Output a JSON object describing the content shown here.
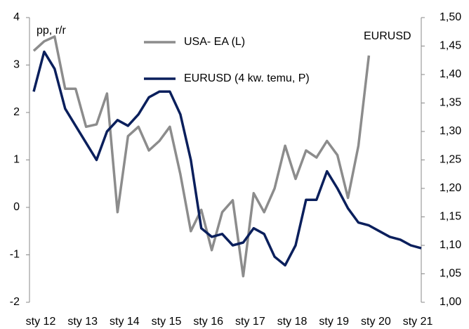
{
  "chart_data": {
    "type": "line",
    "y_label": "pp, r/r",
    "annotation": "EURUSD",
    "categories": [
      "sty 12",
      null,
      null,
      null,
      "sty 13",
      null,
      null,
      null,
      "sty 14",
      null,
      null,
      null,
      "sty 15",
      null,
      null,
      null,
      "sty 16",
      null,
      null,
      null,
      "sty 17",
      null,
      null,
      null,
      "sty 18",
      null,
      null,
      null,
      "sty 19",
      null,
      null,
      null,
      "sty 20",
      null,
      null,
      null,
      "sty 21",
      null
    ],
    "series": [
      {
        "name": "USA- EA (L)",
        "color": "#8c8c8c",
        "axis": "y",
        "values": [
          3.3,
          3.5,
          3.6,
          2.5,
          2.5,
          1.7,
          1.75,
          2.4,
          -0.1,
          1.5,
          1.7,
          1.2,
          1.4,
          1.7,
          0.7,
          -0.5,
          -0.05,
          -0.9,
          -0.1,
          0.15,
          -1.45,
          0.3,
          -0.1,
          0.4,
          1.3,
          0.6,
          1.2,
          1.05,
          1.4,
          1.1,
          0.2,
          1.3,
          3.2,
          null,
          null,
          null,
          null,
          null
        ]
      },
      {
        "name": "EURUSD (4 kw. temu, P)",
        "color": "#0a1f5c",
        "axis": "y2",
        "values": [
          1.37,
          1.44,
          1.41,
          1.34,
          1.31,
          1.28,
          1.25,
          1.3,
          1.32,
          1.31,
          1.33,
          1.36,
          1.37,
          1.37,
          1.33,
          1.25,
          1.13,
          1.115,
          1.12,
          1.1,
          1.105,
          1.13,
          1.12,
          1.08,
          1.065,
          1.1,
          1.18,
          1.18,
          1.23,
          1.2,
          1.165,
          1.14,
          1.135,
          1.125,
          1.115,
          1.11,
          1.1,
          1.095
        ]
      }
    ],
    "ylim": [
      -2,
      4
    ],
    "yticks": [
      -2,
      -1,
      0,
      1,
      2,
      3,
      4
    ],
    "y2lim": [
      1.0,
      1.5
    ],
    "y2ticks": [
      {
        "value": 1.0,
        "label": "1,00"
      },
      {
        "value": 1.05,
        "label": "1,05"
      },
      {
        "value": 1.1,
        "label": "1,10"
      },
      {
        "value": 1.15,
        "label": "1,15"
      },
      {
        "value": 1.2,
        "label": "1,20"
      },
      {
        "value": 1.25,
        "label": "1,25"
      },
      {
        "value": 1.3,
        "label": "1,30"
      },
      {
        "value": 1.35,
        "label": "1,35"
      },
      {
        "value": 1.4,
        "label": "1,40"
      },
      {
        "value": 1.45,
        "label": "1,45"
      },
      {
        "value": 1.5,
        "label": "1,50"
      }
    ]
  }
}
